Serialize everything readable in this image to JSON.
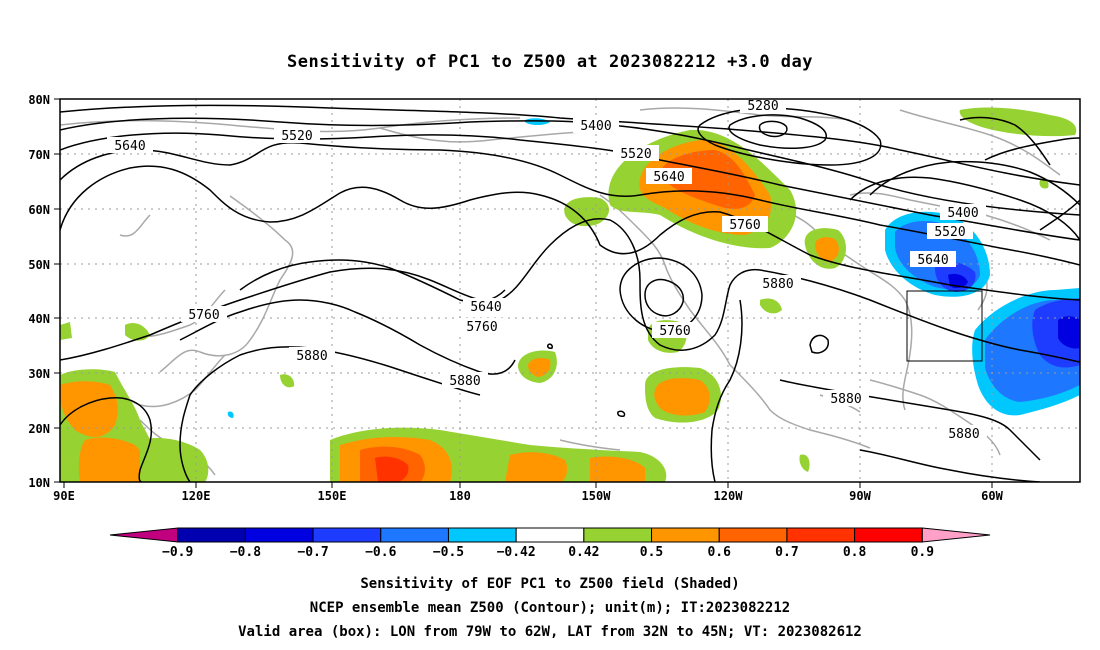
{
  "title": "Sensitivity of PC1 to Z500 at 2023082212 +3.0 day",
  "map": {
    "lon_labels": [
      "90E",
      "120E",
      "150E",
      "180",
      "150W",
      "120W",
      "90W",
      "60W"
    ],
    "lat_labels": [
      "80N",
      "70N",
      "60N",
      "50N",
      "40N",
      "30N",
      "20N",
      "10N"
    ],
    "contour_labels": [
      "5280",
      "5400",
      "5520",
      "5520",
      "5640",
      "5640",
      "5760",
      "5760",
      "5880",
      "5880",
      "5400",
      "5520",
      "5640",
      "5760",
      "5760",
      "5880",
      "5880",
      "5880"
    ],
    "box": {
      "lon_from": "79W",
      "lon_to": "62W",
      "lat_from": "32N",
      "lat_to": "45N"
    }
  },
  "colorbar": {
    "labels": [
      "-0.9",
      "-0.8",
      "-0.7",
      "-0.6",
      "-0.5",
      "-0.42",
      "0.42",
      "0.5",
      "0.6",
      "0.7",
      "0.8",
      "0.9"
    ],
    "colors": [
      "#c0007f",
      "#0000b0",
      "#0000e0",
      "#1e3cff",
      "#1e78ff",
      "#00c8ff",
      "#ffffff",
      "#96d232",
      "#ff9600",
      "#ff6400",
      "#ff3200",
      "#ff0000",
      "#ffa0c8"
    ]
  },
  "caption": {
    "line1": "Sensitivity of EOF PC1 to Z500 field (Shaded)",
    "line2": "NCEP ensemble mean Z500 (Contour); unit(m); IT:2023082212",
    "line3": "Valid area (box): LON from 79W to 62W, LAT from 32N to 45N; VT: 2023082612"
  }
}
